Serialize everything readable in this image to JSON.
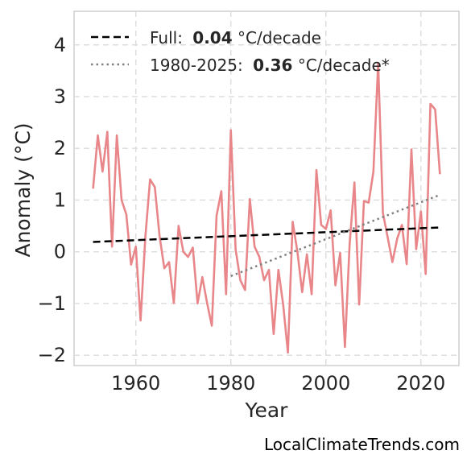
{
  "chart_data": {
    "type": "line",
    "xlabel": "Year",
    "ylabel": "Anomaly (°C)",
    "xlim": [
      1947,
      2028
    ],
    "ylim": [
      -2.2,
      4.65
    ],
    "x_ticks": [
      1960,
      1980,
      2000,
      2020
    ],
    "y_ticks": [
      -2,
      -1,
      0,
      1,
      2,
      3,
      4
    ],
    "y_tick_labels": [
      "−2",
      "−1",
      "0",
      "1",
      "2",
      "3",
      "4"
    ],
    "grid": true,
    "legend_position": "top-left",
    "series": [
      {
        "color": "#e8868a",
        "x": [
          1951,
          1952,
          1953,
          1954,
          1955,
          1956,
          1957,
          1958,
          1959,
          1960,
          1961,
          1962,
          1963,
          1964,
          1965,
          1966,
          1967,
          1968,
          1969,
          1970,
          1971,
          1972,
          1973,
          1974,
          1975,
          1976,
          1977,
          1978,
          1979,
          1980,
          1981,
          1982,
          1983,
          1984,
          1985,
          1986,
          1987,
          1988,
          1989,
          1990,
          1991,
          1992,
          1993,
          1994,
          1995,
          1996,
          1997,
          1998,
          1999,
          2000,
          2001,
          2002,
          2003,
          2004,
          2005,
          2006,
          2007,
          2008,
          2009,
          2010,
          2011,
          2012,
          2013,
          2014,
          2015,
          2016,
          2017,
          2018,
          2019,
          2020,
          2021,
          2022,
          2023,
          2024
        ],
        "values": [
          1.22,
          2.25,
          1.55,
          2.32,
          0.1,
          2.25,
          1.0,
          0.72,
          -0.25,
          0.1,
          -1.33,
          0.28,
          1.4,
          1.25,
          0.3,
          -0.32,
          -0.2,
          -0.99,
          0.5,
          0.0,
          -0.1,
          0.08,
          -1.0,
          -0.49,
          -0.99,
          -1.43,
          0.7,
          1.17,
          -0.82,
          2.35,
          0.05,
          -0.55,
          -0.74,
          1.02,
          0.1,
          -0.1,
          -0.55,
          -0.35,
          -1.59,
          -0.35,
          -1.02,
          -1.95,
          0.58,
          0.0,
          -0.78,
          -0.05,
          -0.82,
          1.58,
          0.52,
          0.44,
          0.8,
          -0.65,
          -0.02,
          -1.84,
          0.16,
          1.34,
          -1.02,
          0.98,
          0.95,
          1.55,
          3.65,
          0.75,
          0.28,
          -0.2,
          0.25,
          0.52,
          -0.24,
          1.98,
          0.05,
          0.78,
          -0.43,
          2.86,
          2.75,
          1.5
        ]
      }
    ],
    "trend_lines": [
      {
        "name": "Full:",
        "rate": "0.04",
        "unit": "°C/decade",
        "style": "dashed",
        "color": "#000000",
        "x": [
          1951,
          2024
        ],
        "y": [
          0.19,
          0.47
        ]
      },
      {
        "name": "1980-2025:",
        "rate": "0.36",
        "unit": "°C/decade*",
        "style": "dotted",
        "color": "#808080",
        "x": [
          1980,
          2024
        ],
        "y": [
          -0.47,
          1.1
        ]
      }
    ]
  },
  "footer": {
    "credit": "LocalClimateTrends.com"
  }
}
